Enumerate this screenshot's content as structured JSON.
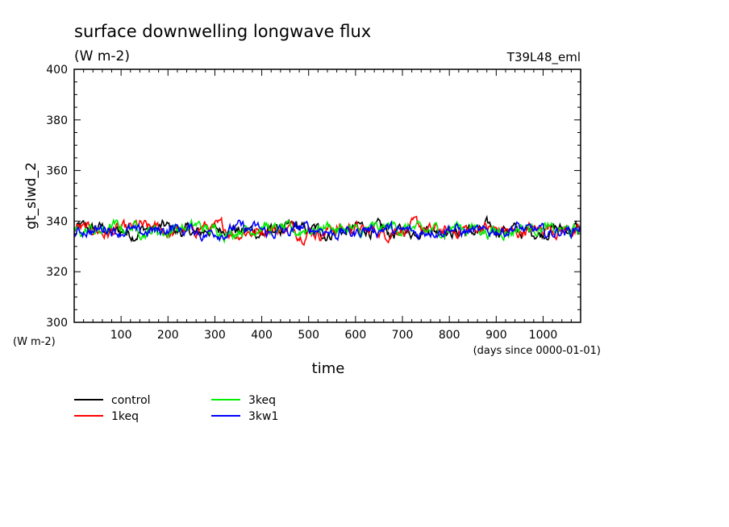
{
  "chart_data": {
    "type": "line",
    "title": "surface downwelling longwave flux",
    "subtitle": "(W m-2)",
    "experiment": "T39L48_eml",
    "ylabel": "gt_slwd_2",
    "yunit_label": "(W m-2)",
    "xlabel": "time",
    "xunit_label": "(days since 0000-01-01)",
    "xlim": [
      0,
      1080
    ],
    "ylim": [
      300,
      400
    ],
    "xticks": [
      100,
      200,
      300,
      400,
      500,
      600,
      700,
      800,
      900,
      1000
    ],
    "yticks": [
      300,
      320,
      340,
      360,
      380,
      400
    ],
    "grid": false,
    "legend_position": "bottom-left",
    "series": [
      {
        "name": "control",
        "color": "#000000",
        "mean": 336.3,
        "amplitude": 3.4
      },
      {
        "name": "1keq",
        "color": "#ff0000",
        "mean": 336.5,
        "amplitude": 3.5
      },
      {
        "name": "3keq",
        "color": "#00ee00",
        "mean": 336.8,
        "amplitude": 3.3
      },
      {
        "name": "3kw1",
        "color": "#0000ff",
        "mean": 336.2,
        "amplitude": 3.2
      }
    ]
  }
}
